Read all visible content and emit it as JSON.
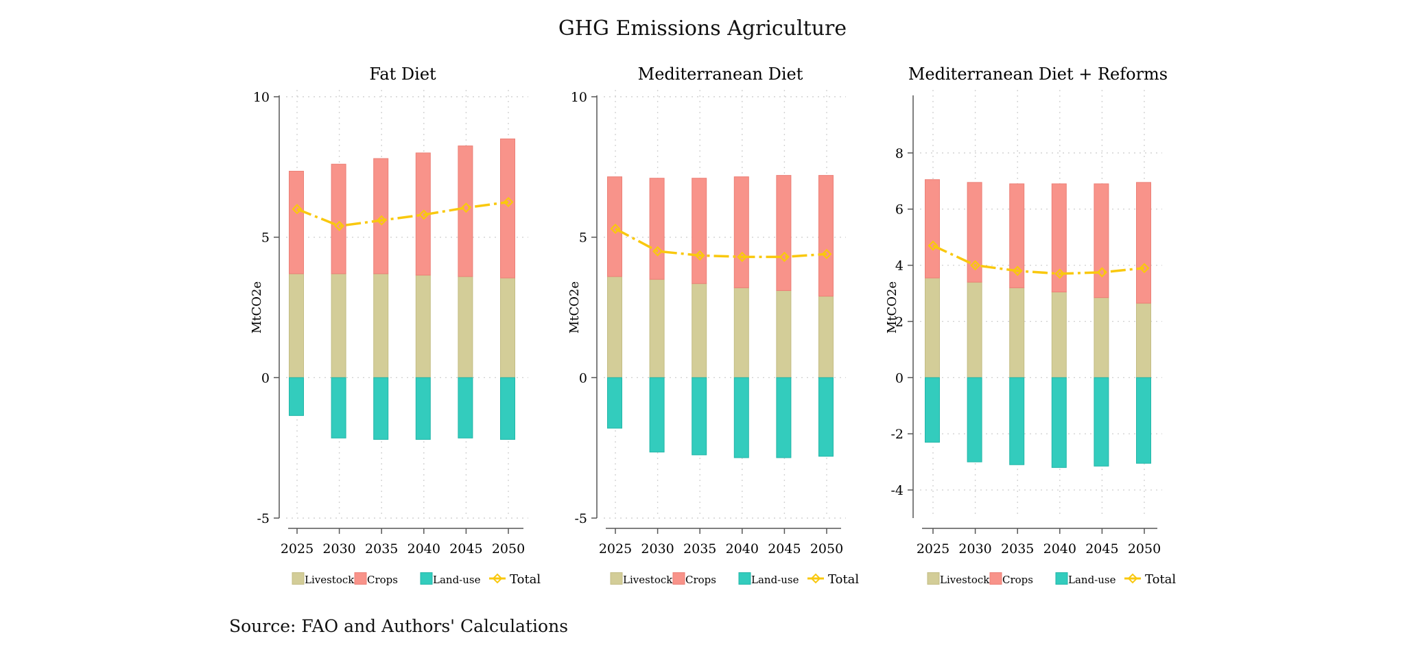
{
  "title": "GHG Emissions Agriculture",
  "source_note": "Source: FAO and Authors' Calculations",
  "colors": {
    "livestock": "#d3cd98",
    "livestock_edge": "#c3bc83",
    "crops": "#f8938a",
    "crops_edge": "#ec7f76",
    "land_use": "#33ccbd",
    "land_use_edge": "#22b6a8",
    "total": "#f9c80e",
    "grid": "#d2d2d2",
    "axis": "#555555"
  },
  "legend": {
    "livestock": "Livestock",
    "crops": "Crops",
    "land_use": "Land-use",
    "total": "Total"
  },
  "chart_data": [
    {
      "type": "bar",
      "stacked": true,
      "title": "Fat Diet",
      "ylabel": "MtCO2e",
      "xlabel": "",
      "categories": [
        "2025",
        "2030",
        "2035",
        "2040",
        "2045",
        "2050"
      ],
      "ylim": [
        -5,
        10
      ],
      "yticks": [
        -5,
        0,
        5,
        10
      ],
      "grid": true,
      "legend_position": "bottom",
      "series": [
        {
          "name": "Livestock",
          "values": [
            3.7,
            3.7,
            3.7,
            3.65,
            3.6,
            3.55
          ]
        },
        {
          "name": "Crops",
          "values": [
            3.65,
            3.9,
            4.1,
            4.35,
            4.65,
            4.95
          ]
        },
        {
          "name": "Land-use",
          "values": [
            -1.35,
            -2.15,
            -2.2,
            -2.2,
            -2.15,
            -2.2
          ]
        },
        {
          "name": "Total",
          "type": "line",
          "values": [
            6.0,
            5.4,
            5.6,
            5.8,
            6.05,
            6.25
          ]
        }
      ]
    },
    {
      "type": "bar",
      "stacked": true,
      "title": "Mediterranean Diet",
      "ylabel": "MtCO2e",
      "xlabel": "",
      "categories": [
        "2025",
        "2030",
        "2035",
        "2040",
        "2045",
        "2050"
      ],
      "ylim": [
        -5,
        10
      ],
      "yticks": [
        -5,
        0,
        5,
        10
      ],
      "grid": true,
      "legend_position": "bottom",
      "series": [
        {
          "name": "Livestock",
          "values": [
            3.6,
            3.5,
            3.35,
            3.2,
            3.1,
            2.9
          ]
        },
        {
          "name": "Crops",
          "values": [
            3.55,
            3.6,
            3.75,
            3.95,
            4.1,
            4.3
          ]
        },
        {
          "name": "Land-use",
          "values": [
            -1.8,
            -2.65,
            -2.75,
            -2.85,
            -2.85,
            -2.8
          ]
        },
        {
          "name": "Total",
          "type": "line",
          "values": [
            5.3,
            4.5,
            4.35,
            4.3,
            4.3,
            4.4
          ]
        }
      ]
    },
    {
      "type": "bar",
      "stacked": true,
      "title": "Mediterranean Diet + Reforms",
      "ylabel": "MtCO2e",
      "xlabel": "",
      "categories": [
        "2025",
        "2030",
        "2035",
        "2040",
        "2045",
        "2050"
      ],
      "ylim": [
        -5,
        10
      ],
      "yticks": [
        -4,
        -2,
        0,
        2,
        4,
        6,
        8
      ],
      "grid": true,
      "legend_position": "bottom",
      "series": [
        {
          "name": "Livestock",
          "values": [
            3.55,
            3.4,
            3.2,
            3.05,
            2.85,
            2.65
          ]
        },
        {
          "name": "Crops",
          "values": [
            3.5,
            3.55,
            3.7,
            3.85,
            4.05,
            4.3
          ]
        },
        {
          "name": "Land-use",
          "values": [
            -2.3,
            -3.0,
            -3.1,
            -3.2,
            -3.15,
            -3.05
          ]
        },
        {
          "name": "Total",
          "type": "line",
          "values": [
            4.7,
            4.0,
            3.8,
            3.7,
            3.75,
            3.9
          ]
        }
      ]
    }
  ]
}
